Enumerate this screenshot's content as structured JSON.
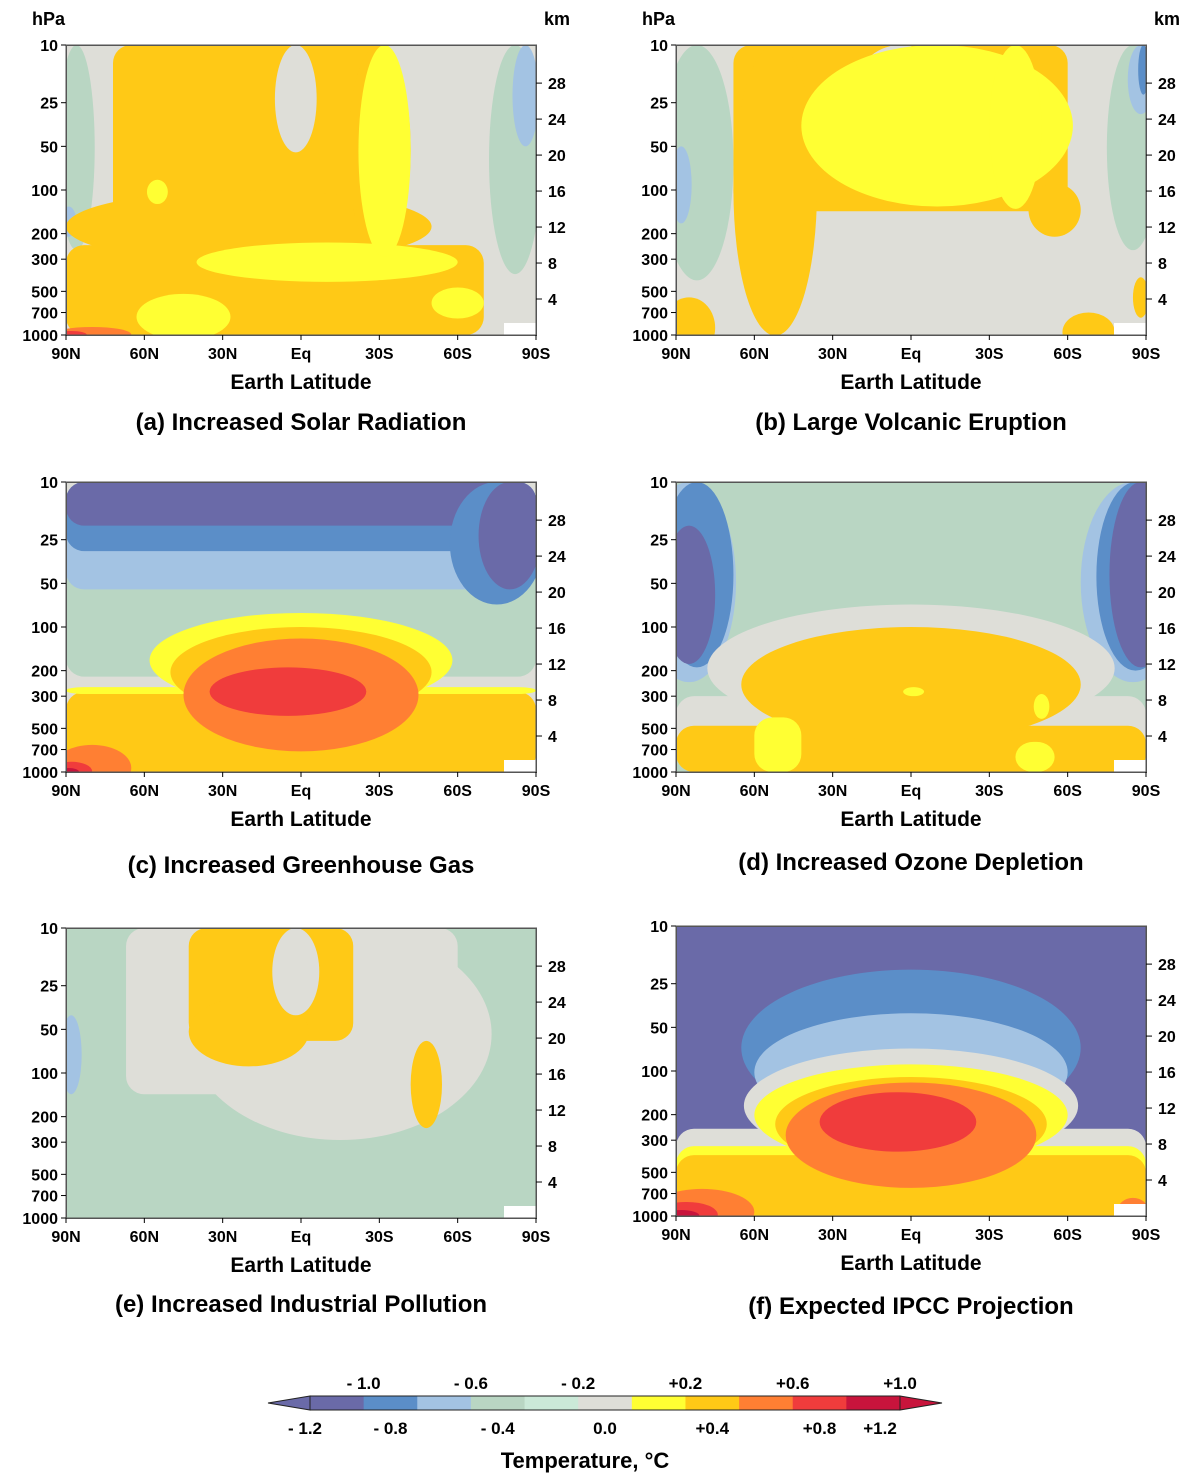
{
  "figure": {
    "pressure_axis": {
      "unit_label": "hPa",
      "ticks": [
        "10",
        "25",
        "50",
        "100",
        "200",
        "300",
        "500",
        "700",
        "1000"
      ]
    },
    "altitude_axis": {
      "unit_label": "km",
      "ticks": [
        "28",
        "24",
        "20",
        "16",
        "12",
        "8",
        "4"
      ]
    },
    "latitude_axis": {
      "label": "Earth Latitude",
      "ticks": [
        "90N",
        "60N",
        "30N",
        "Eq",
        "30S",
        "60S",
        "90S"
      ]
    },
    "legend": {
      "title": "Temperature, °C",
      "upper_labels": [
        "- 1.0",
        "- 0.6",
        "- 0.2",
        "+0.2",
        "+0.6",
        "+1.0"
      ],
      "lower_labels": [
        "- 1.2",
        "- 0.8",
        "- 0.4",
        "0.0",
        "+0.4",
        "+0.8",
        "+1.2"
      ],
      "colors": [
        "#6a6aa8",
        "#5b8ec8",
        "#a3c3e3",
        "#b9d6c3",
        "#cbe9d8",
        "#deded8",
        "#ffff33",
        "#ffc916",
        "#ff7f33",
        "#f03c3c",
        "#c8143c"
      ]
    }
  },
  "chart_data": [
    {
      "type": "heatmap",
      "title": "(a)  Increased Solar Radiation",
      "xlabel": "Earth Latitude",
      "ylabel": "hPa",
      "y2label": "km",
      "x_ticks": [
        "90N",
        "60N",
        "30N",
        "Eq",
        "30S",
        "60S",
        "90S"
      ],
      "y_ticks": [
        "10",
        "25",
        "50",
        "100",
        "200",
        "300",
        "500",
        "700",
        "1000"
      ],
      "y2_ticks": [
        "28",
        "24",
        "20",
        "16",
        "12",
        "8",
        "4"
      ],
      "fill": "#deded8",
      "regions": [
        {
          "color": "#b9d6c3",
          "shape": "ellipse",
          "cx": 86,
          "cy": 130,
          "rx": 7,
          "ry": 130
        },
        {
          "color": "#a3c3e3",
          "shape": "ellipse",
          "cx": 89,
          "cy": 170,
          "rx": 3,
          "ry": 40
        },
        {
          "color": "#b9d6c3",
          "shape": "ellipse",
          "cx": -82,
          "cy": 180,
          "rx": 10,
          "ry": 200
        },
        {
          "color": "#a3c3e3",
          "shape": "ellipse",
          "cx": -86,
          "cy": 25,
          "rx": 5,
          "ry": 25
        },
        {
          "color": "#ffc916",
          "shape": "rect",
          "x0": 72,
          "x1": -35,
          "y0": 10,
          "y1": 270
        },
        {
          "color": "#deded8",
          "shape": "ellipse",
          "cx": 2,
          "cy": 10,
          "rx": 8,
          "ry": 45
        },
        {
          "color": "#ffc916",
          "shape": "ellipse",
          "cx": 20,
          "cy": 210,
          "rx": 70,
          "ry": 110
        },
        {
          "color": "#ffc916",
          "shape": "ellipse",
          "cx": -30,
          "cy": 60,
          "rx": 12,
          "ry": 220
        },
        {
          "color": "#ffc916",
          "shape": "rect",
          "x0": 90,
          "x1": -70,
          "y0": 240,
          "y1": 1000
        },
        {
          "color": "#ffff33",
          "shape": "ellipse",
          "cx": -10,
          "cy": 330,
          "rx": 50,
          "ry": 100
        },
        {
          "color": "#ffff33",
          "shape": "ellipse",
          "cx": -32,
          "cy": 140,
          "rx": 10,
          "ry": 150
        },
        {
          "color": "#ffff33",
          "shape": "ellipse",
          "cx": 55,
          "cy": 105,
          "rx": 4,
          "ry": 20
        },
        {
          "color": "#ffff33",
          "shape": "ellipse",
          "cx": 45,
          "cy": 800,
          "rx": 18,
          "ry": 280
        },
        {
          "color": "#ffff33",
          "shape": "ellipse",
          "cx": -60,
          "cy": 620,
          "rx": 10,
          "ry": 150
        },
        {
          "color": "#ff7f33",
          "shape": "ellipse",
          "cx": 80,
          "cy": 1000,
          "rx": 15,
          "ry": 120
        },
        {
          "color": "#f03c3c",
          "shape": "ellipse",
          "cx": 88,
          "cy": 1000,
          "rx": 6,
          "ry": 40
        }
      ]
    },
    {
      "type": "heatmap",
      "title": "(b)  Large Volcanic Eruption",
      "xlabel": "Earth Latitude",
      "ylabel": "hPa",
      "y2label": "km",
      "x_ticks": [
        "90N",
        "60N",
        "30N",
        "Eq",
        "30S",
        "60S",
        "90S"
      ],
      "y_ticks": [
        "10",
        "25",
        "50",
        "100",
        "200",
        "300",
        "500",
        "700",
        "1000"
      ],
      "y2_ticks": [
        "28",
        "24",
        "20",
        "16",
        "12",
        "8",
        "4"
      ],
      "fill": "#deded8",
      "regions": [
        {
          "color": "#b9d6c3",
          "shape": "ellipse",
          "cx": 82,
          "cy": 180,
          "rx": 14,
          "ry": 240
        },
        {
          "color": "#a3c3e3",
          "shape": "ellipse",
          "cx": 88,
          "cy": 110,
          "rx": 4,
          "ry": 60
        },
        {
          "color": "#b9d6c3",
          "shape": "ellipse",
          "cx": -85,
          "cy": 60,
          "rx": 10,
          "ry": 200
        },
        {
          "color": "#a3c3e3",
          "shape": "ellipse",
          "cx": -88,
          "cy": 10,
          "rx": 5,
          "ry": 20
        },
        {
          "color": "#5b8ec8",
          "shape": "ellipse",
          "cx": -89,
          "cy": 10,
          "rx": 2,
          "ry": 12
        },
        {
          "color": "#ffc916",
          "shape": "rect",
          "x0": 68,
          "x1": -60,
          "y0": 10,
          "y1": 140
        },
        {
          "color": "#deded8",
          "shape": "ellipse",
          "cx": 4,
          "cy": 10,
          "rx": 18,
          "ry": 36
        },
        {
          "color": "#ffc916",
          "shape": "ellipse",
          "cx": 52,
          "cy": 260,
          "rx": 16,
          "ry": 750
        },
        {
          "color": "#ffc916",
          "shape": "ellipse",
          "cx": -55,
          "cy": 150,
          "rx": 10,
          "ry": 60
        },
        {
          "color": "#ffff33",
          "shape": "ellipse",
          "cx": -10,
          "cy": 70,
          "rx": 52,
          "ry": 60
        },
        {
          "color": "#ffff33",
          "shape": "ellipse",
          "cx": -40,
          "cy": 45,
          "rx": 10,
          "ry": 90
        },
        {
          "color": "#ffc916",
          "shape": "ellipse",
          "cx": 85,
          "cy": 1000,
          "rx": 10,
          "ry": 450
        },
        {
          "color": "#ffc916",
          "shape": "ellipse",
          "cx": -68,
          "cy": 1000,
          "rx": 10,
          "ry": 300
        },
        {
          "color": "#ffc916",
          "shape": "ellipse",
          "cx": -88,
          "cy": 580,
          "rx": 3,
          "ry": 180
        }
      ]
    },
    {
      "type": "heatmap",
      "title": "(c)  Increased Greenhouse Gas",
      "xlabel": "Earth Latitude",
      "ylabel": "hPa",
      "y2label": "km",
      "x_ticks": [
        "90N",
        "60N",
        "30N",
        "Eq",
        "30S",
        "60S",
        "90S"
      ],
      "y_ticks": [
        "10",
        "25",
        "50",
        "100",
        "200",
        "300",
        "500",
        "700",
        "1000"
      ],
      "y2_ticks": [
        "28",
        "24",
        "20",
        "16",
        "12",
        "8",
        "4"
      ],
      "fill": "#deded8",
      "regions": [
        {
          "color": "#b9d6c3",
          "shape": "rect",
          "x0": 90,
          "x1": -90,
          "y0": 10,
          "y1": 220
        },
        {
          "color": "#a3c3e3",
          "shape": "rect",
          "x0": 90,
          "x1": -90,
          "y0": 10,
          "y1": 55
        },
        {
          "color": "#5b8ec8",
          "shape": "rect",
          "x0": 90,
          "x1": -90,
          "y0": 10,
          "y1": 30
        },
        {
          "color": "#6a6aa8",
          "shape": "rect",
          "x0": 90,
          "x1": -90,
          "y0": 10,
          "y1": 20
        },
        {
          "color": "#5b8ec8",
          "shape": "ellipse",
          "cx": -75,
          "cy": 30,
          "rx": 18,
          "ry": 40
        },
        {
          "color": "#6a6aa8",
          "shape": "ellipse",
          "cx": -80,
          "cy": 25,
          "rx": 12,
          "ry": 30
        },
        {
          "color": "#ffc916",
          "shape": "rect",
          "x0": 90,
          "x1": -90,
          "y0": 280,
          "y1": 1000
        },
        {
          "color": "#ffff33",
          "shape": "rect",
          "x0": 90,
          "x1": -90,
          "y0": 260,
          "y1": 290
        },
        {
          "color": "#ffff33",
          "shape": "ellipse",
          "cx": 0,
          "cy": 220,
          "rx": 58,
          "ry": 140
        },
        {
          "color": "#ffc916",
          "shape": "ellipse",
          "cx": 0,
          "cy": 260,
          "rx": 50,
          "ry": 160
        },
        {
          "color": "#ff7f33",
          "shape": "ellipse",
          "cx": 0,
          "cy": 420,
          "rx": 45,
          "ry": 300
        },
        {
          "color": "#f03c3c",
          "shape": "ellipse",
          "cx": 5,
          "cy": 300,
          "rx": 30,
          "ry": 110
        },
        {
          "color": "#ff7f33",
          "shape": "ellipse",
          "cx": 80,
          "cy": 1000,
          "rx": 15,
          "ry": 350
        },
        {
          "color": "#f03c3c",
          "shape": "ellipse",
          "cx": 88,
          "cy": 1000,
          "rx": 8,
          "ry": 150
        },
        {
          "color": "#c8143c",
          "shape": "ellipse",
          "cx": 89,
          "cy": 1000,
          "rx": 4,
          "ry": 40
        }
      ]
    },
    {
      "type": "heatmap",
      "title": "(d)  Increased Ozone Depletion",
      "xlabel": "Earth Latitude",
      "ylabel": "hPa",
      "y2label": "km",
      "x_ticks": [
        "90N",
        "60N",
        "30N",
        "Eq",
        "30S",
        "60S",
        "90S"
      ],
      "y_ticks": [
        "10",
        "25",
        "50",
        "100",
        "200",
        "300",
        "500",
        "700",
        "1000"
      ],
      "y2_ticks": [
        "28",
        "24",
        "20",
        "16",
        "12",
        "8",
        "4"
      ],
      "fill": "#b9d6c3",
      "regions": [
        {
          "color": "#a3c3e3",
          "shape": "ellipse",
          "cx": 85,
          "cy": 60,
          "rx": 18,
          "ry": 180
        },
        {
          "color": "#5b8ec8",
          "shape": "ellipse",
          "cx": 82,
          "cy": 90,
          "rx": 14,
          "ry": 100
        },
        {
          "color": "#6a6aa8",
          "shape": "ellipse",
          "cx": 85,
          "cy": 100,
          "rx": 10,
          "ry": 80
        },
        {
          "color": "#a3c3e3",
          "shape": "ellipse",
          "cx": -85,
          "cy": 40,
          "rx": 20,
          "ry": 200
        },
        {
          "color": "#5b8ec8",
          "shape": "ellipse",
          "cx": -86,
          "cy": 70,
          "rx": 15,
          "ry": 130
        },
        {
          "color": "#6a6aa8",
          "shape": "ellipse",
          "cx": -88,
          "cy": 80,
          "rx": 12,
          "ry": 110
        },
        {
          "color": "#deded8",
          "shape": "rect",
          "x0": 90,
          "x1": -90,
          "y0": 300,
          "y1": 1000
        },
        {
          "color": "#deded8",
          "shape": "ellipse",
          "cx": 0,
          "cy": 300,
          "rx": 78,
          "ry": 230
        },
        {
          "color": "#ffc916",
          "shape": "rect",
          "x0": 90,
          "x1": -90,
          "y0": 480,
          "y1": 1000
        },
        {
          "color": "#ffc916",
          "shape": "ellipse",
          "cx": 0,
          "cy": 360,
          "rx": 65,
          "ry": 260
        },
        {
          "color": "#ffff33",
          "shape": "rect",
          "x0": 60,
          "x1": 42,
          "y0": 420,
          "y1": 1000
        },
        {
          "color": "#ffff33",
          "shape": "rect",
          "x0": -40,
          "x1": -55,
          "y0": 620,
          "y1": 1000
        },
        {
          "color": "#ffff33",
          "shape": "ellipse",
          "cx": -1,
          "cy": 280,
          "rx": 4,
          "ry": 20
        },
        {
          "color": "#ffff33",
          "shape": "ellipse",
          "cx": -50,
          "cy": 360,
          "rx": 3,
          "ry": 70
        }
      ]
    },
    {
      "type": "heatmap",
      "title": "(e)  Increased Industrial Pollution",
      "xlabel": "Earth Latitude",
      "ylabel": "hPa",
      "y2label": "km",
      "x_ticks": [
        "90N",
        "60N",
        "30N",
        "Eq",
        "30S",
        "60S",
        "90S"
      ],
      "y_ticks": [
        "10",
        "25",
        "50",
        "100",
        "200",
        "300",
        "500",
        "700",
        "1000"
      ],
      "y2_ticks": [
        "28",
        "24",
        "20",
        "16",
        "12",
        "8",
        "4"
      ],
      "fill": "#b9d6c3",
      "regions": [
        {
          "color": "#a3c3e3",
          "shape": "ellipse",
          "cx": 88,
          "cy": 90,
          "rx": 4,
          "ry": 50
        },
        {
          "color": "#deded8",
          "shape": "rect",
          "x0": 67,
          "x1": -60,
          "y0": 10,
          "y1": 140
        },
        {
          "color": "#deded8",
          "shape": "ellipse",
          "cx": -15,
          "cy": 150,
          "rx": 58,
          "ry": 140
        },
        {
          "color": "#ffc916",
          "shape": "rect",
          "x0": 43,
          "x1": -20,
          "y0": 10,
          "y1": 60
        },
        {
          "color": "#ffc916",
          "shape": "ellipse",
          "cx": 20,
          "cy": 60,
          "rx": 23,
          "ry": 30
        },
        {
          "color": "#deded8",
          "shape": "ellipse",
          "cx": 2,
          "cy": 10,
          "rx": 9,
          "ry": 30
        },
        {
          "color": "#ffc916",
          "shape": "ellipse",
          "cx": -48,
          "cy": 150,
          "rx": 6,
          "ry": 90
        }
      ]
    },
    {
      "type": "heatmap",
      "title": "(f)  Expected IPCC Projection",
      "xlabel": "Earth Latitude",
      "ylabel": "hPa",
      "y2label": "km",
      "x_ticks": [
        "90N",
        "60N",
        "30N",
        "Eq",
        "30S",
        "60S",
        "90S"
      ],
      "y_ticks": [
        "10",
        "25",
        "50",
        "100",
        "200",
        "300",
        "500",
        "700",
        "1000"
      ],
      "y2_ticks": [
        "28",
        "24",
        "20",
        "16",
        "12",
        "8",
        "4"
      ],
      "fill": "#6a6aa8",
      "regions": [
        {
          "color": "#5b8ec8",
          "shape": "ellipse",
          "cx": 0,
          "cy": 130,
          "rx": 65,
          "ry": 110
        },
        {
          "color": "#a3c3e3",
          "shape": "ellipse",
          "cx": 0,
          "cy": 150,
          "rx": 60,
          "ry": 110
        },
        {
          "color": "#deded8",
          "shape": "rect",
          "x0": 90,
          "x1": -90,
          "y0": 250,
          "y1": 1000
        },
        {
          "color": "#deded8",
          "shape": "ellipse",
          "cx": 0,
          "cy": 250,
          "rx": 64,
          "ry": 180
        },
        {
          "color": "#ffff33",
          "shape": "ellipse",
          "cx": 0,
          "cy": 270,
          "rx": 60,
          "ry": 180
        },
        {
          "color": "#ffff33",
          "shape": "rect",
          "x0": 90,
          "x1": -90,
          "y0": 330,
          "y1": 1000
        },
        {
          "color": "#ffc916",
          "shape": "rect",
          "x0": 90,
          "x1": -90,
          "y0": 380,
          "y1": 1000
        },
        {
          "color": "#ffc916",
          "shape": "ellipse",
          "cx": 0,
          "cy": 300,
          "rx": 52,
          "ry": 190
        },
        {
          "color": "#ff7f33",
          "shape": "ellipse",
          "cx": 0,
          "cy": 380,
          "rx": 48,
          "ry": 260
        },
        {
          "color": "#f03c3c",
          "shape": "ellipse",
          "cx": 5,
          "cy": 250,
          "rx": 30,
          "ry": 110
        },
        {
          "color": "#ffc916",
          "shape": "ellipse",
          "cx": 0,
          "cy": 1000,
          "rx": 35,
          "ry": 220
        },
        {
          "color": "#ff7f33",
          "shape": "ellipse",
          "cx": 80,
          "cy": 1000,
          "rx": 20,
          "ry": 350
        },
        {
          "color": "#f03c3c",
          "shape": "ellipse",
          "cx": 86,
          "cy": 1000,
          "rx": 12,
          "ry": 200
        },
        {
          "color": "#c8143c",
          "shape": "ellipse",
          "cx": 88,
          "cy": 1000,
          "rx": 7,
          "ry": 90
        },
        {
          "color": "#ff7f33",
          "shape": "ellipse",
          "cx": -85,
          "cy": 950,
          "rx": 6,
          "ry": 200
        }
      ]
    }
  ]
}
